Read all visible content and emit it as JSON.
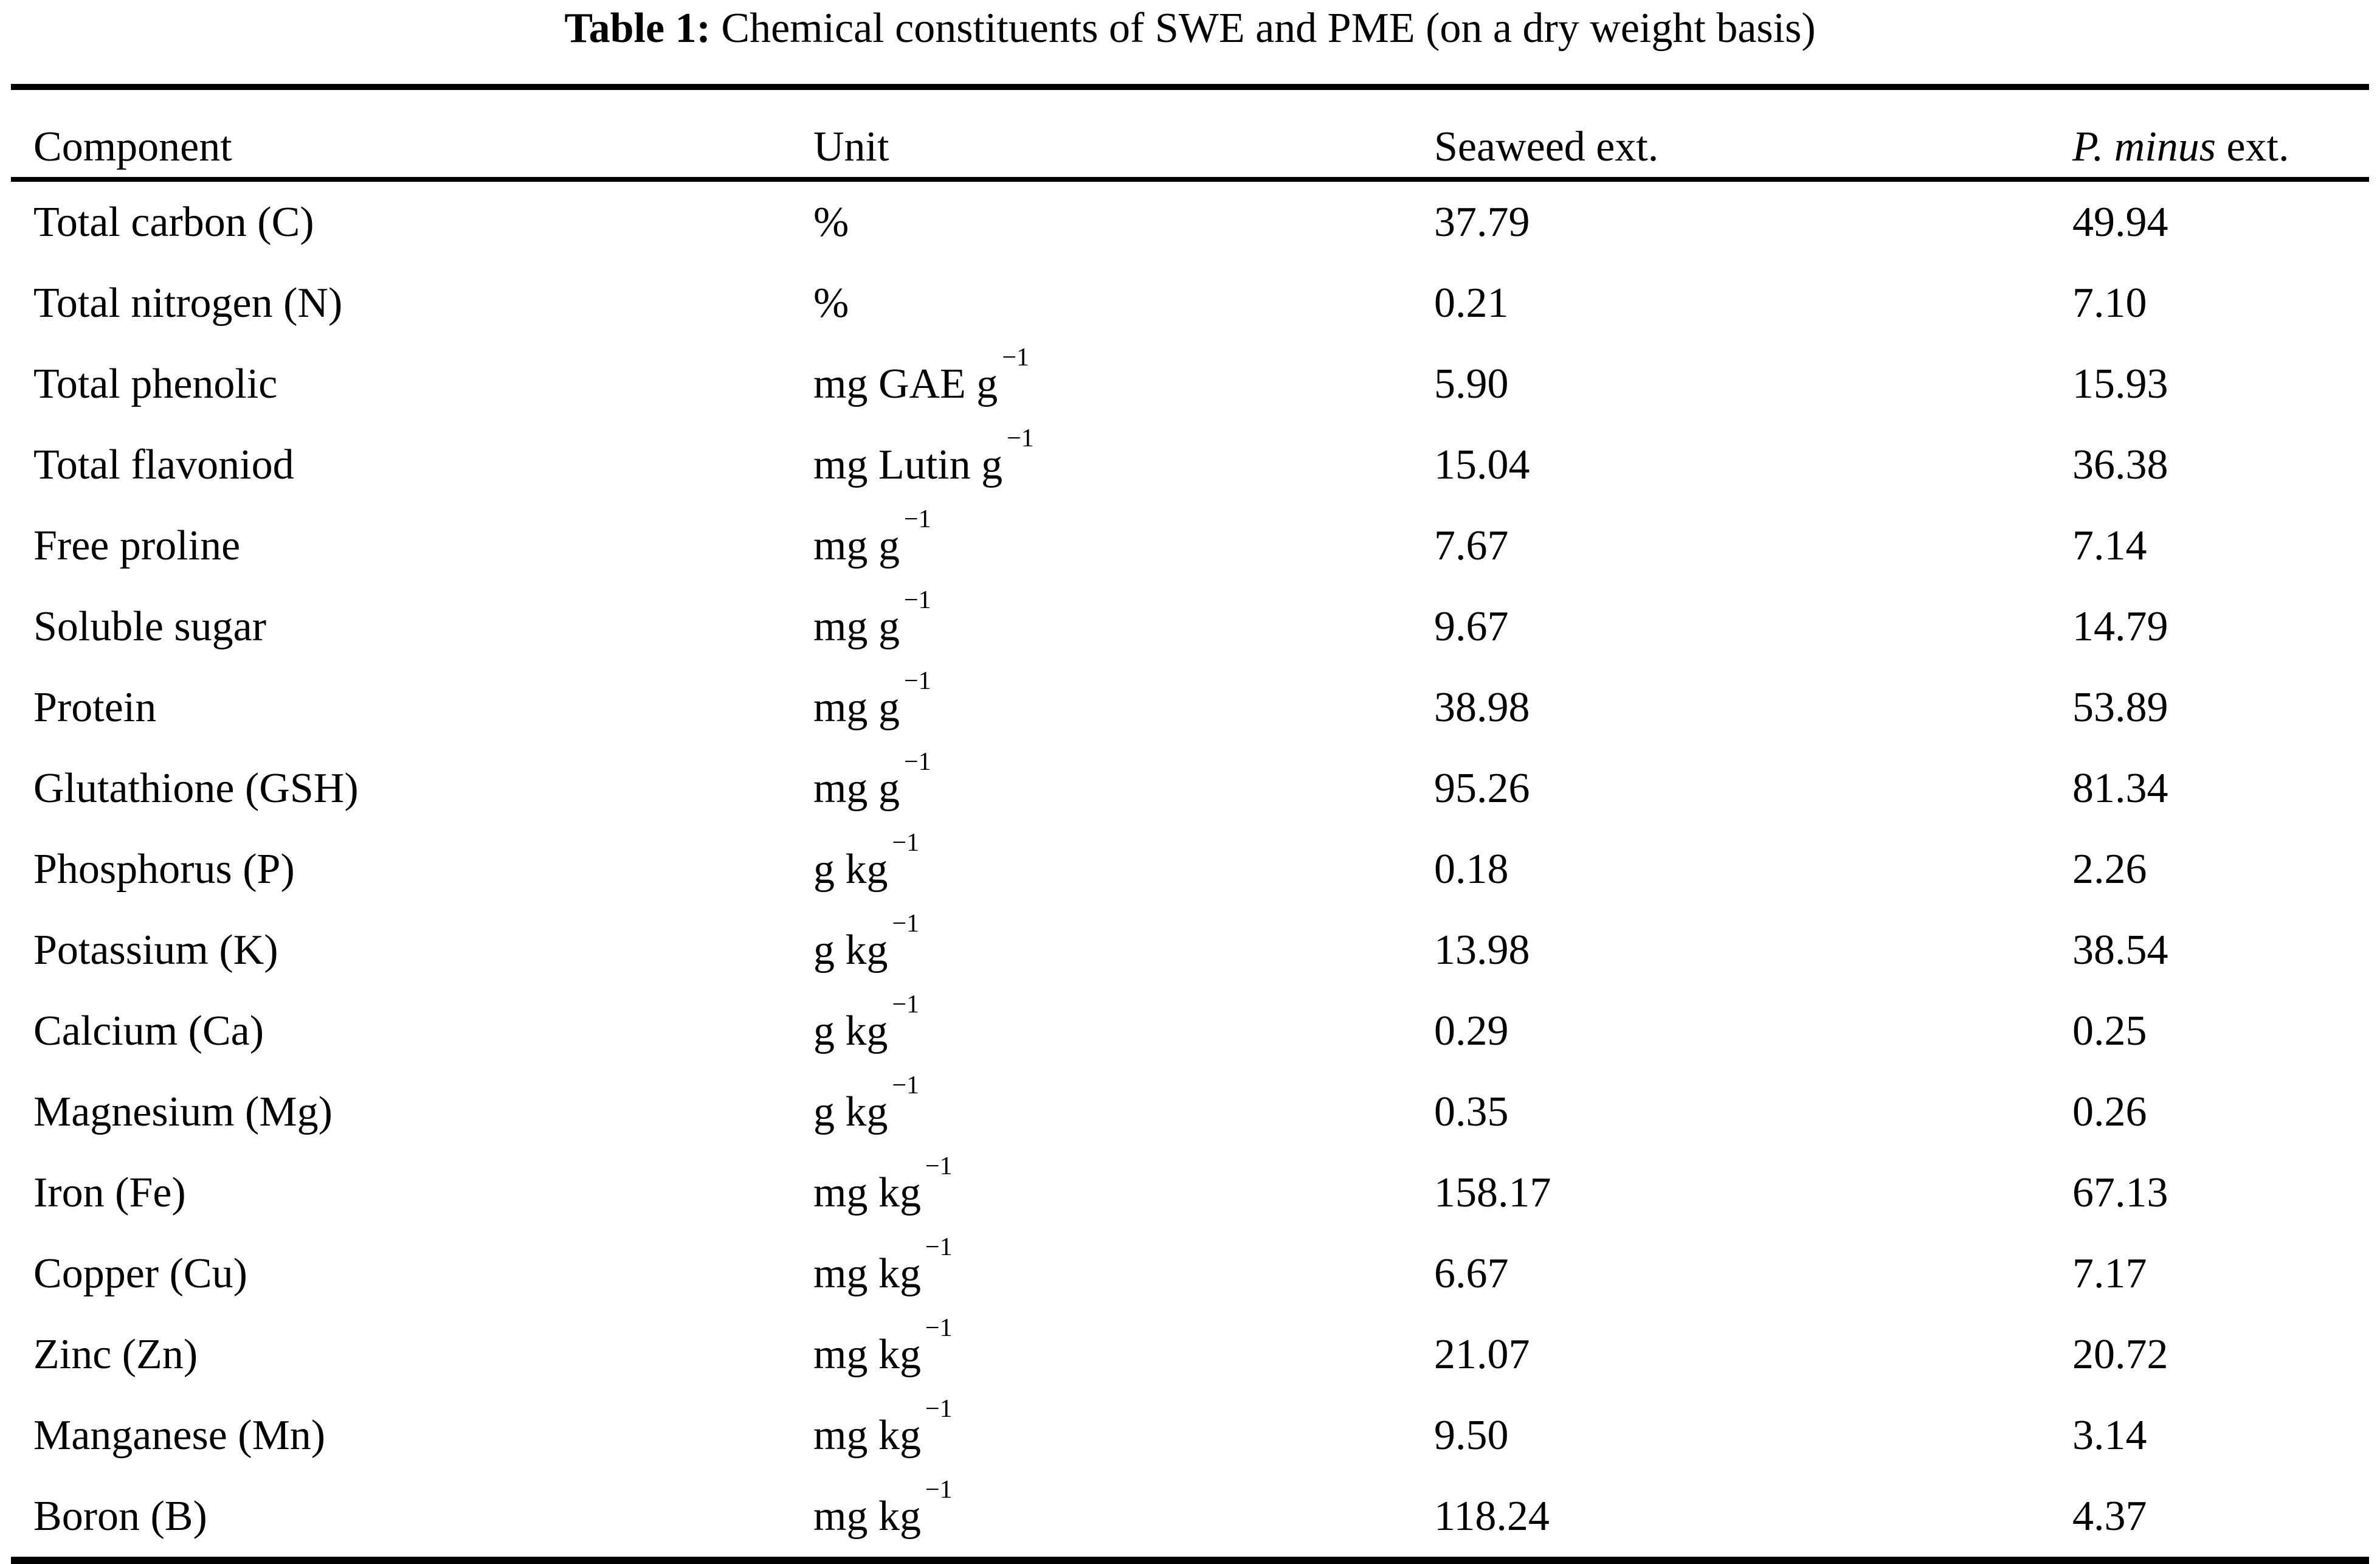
{
  "title": {
    "label": "Table 1:",
    "text": " Chemical constituents of SWE and PME (on a dry weight basis)"
  },
  "table": {
    "headers": {
      "component": "Component",
      "unit": "Unit",
      "swe": "Seaweed ext.",
      "pme_italic": "P. minus",
      "pme_rest": " ext."
    },
    "rows": [
      {
        "component": "Total carbon (C)",
        "unit_base": "%",
        "unit_sup": "",
        "swe": "37.79",
        "pme": "49.94"
      },
      {
        "component": "Total nitrogen (N)",
        "unit_base": "%",
        "unit_sup": "",
        "swe": "0.21",
        "pme": "7.10"
      },
      {
        "component": "Total phenolic",
        "unit_base": "mg GAE g",
        "unit_sup": "−1",
        "swe": "5.90",
        "pme": "15.93"
      },
      {
        "component": "Total flavoniod",
        "unit_base": "mg Lutin g",
        "unit_sup": "−1",
        "swe": "15.04",
        "pme": "36.38"
      },
      {
        "component": "Free proline",
        "unit_base": "mg g",
        "unit_sup": "−1",
        "swe": "7.67",
        "pme": "7.14"
      },
      {
        "component": "Soluble sugar",
        "unit_base": "mg g",
        "unit_sup": "−1",
        "swe": "9.67",
        "pme": "14.79"
      },
      {
        "component": "Protein",
        "unit_base": "mg g",
        "unit_sup": "−1",
        "swe": "38.98",
        "pme": "53.89"
      },
      {
        "component": "Glutathione (GSH)",
        "unit_base": "mg g",
        "unit_sup": "−1",
        "swe": "95.26",
        "pme": "81.34"
      },
      {
        "component": "Phosphorus (P)",
        "unit_base": "g kg",
        "unit_sup": "−1",
        "swe": "0.18",
        "pme": "2.26"
      },
      {
        "component": "Potassium (K)",
        "unit_base": "g kg",
        "unit_sup": "−1",
        "swe": "13.98",
        "pme": "38.54"
      },
      {
        "component": "Calcium (Ca)",
        "unit_base": "g kg",
        "unit_sup": "−1",
        "swe": "0.29",
        "pme": "0.25"
      },
      {
        "component": "Magnesium (Mg)",
        "unit_base": "g kg",
        "unit_sup": "−1",
        "swe": "0.35",
        "pme": "0.26"
      },
      {
        "component": "Iron (Fe)",
        "unit_base": "mg kg",
        "unit_sup": "−1",
        "swe": "158.17",
        "pme": "67.13"
      },
      {
        "component": "Copper (Cu)",
        "unit_base": "mg kg",
        "unit_sup": "−1",
        "swe": "6.67",
        "pme": "7.17"
      },
      {
        "component": "Zinc (Zn)",
        "unit_base": "mg kg",
        "unit_sup": "−1",
        "swe": "21.07",
        "pme": "20.72"
      },
      {
        "component": "Manganese (Mn)",
        "unit_base": "mg kg",
        "unit_sup": "−1",
        "swe": "9.50",
        "pme": "3.14"
      },
      {
        "component": "Boron (B)",
        "unit_base": "mg kg",
        "unit_sup": "−1",
        "swe": "118.24",
        "pme": "4.37"
      }
    ]
  },
  "chart_data": {
    "type": "table",
    "title": "Table 1: Chemical constituents of SWE and PME (on a dry weight basis)",
    "columns": [
      "Component",
      "Unit",
      "Seaweed ext.",
      "P. minus ext."
    ],
    "rows": [
      [
        "Total carbon (C)",
        "%",
        37.79,
        49.94
      ],
      [
        "Total nitrogen (N)",
        "%",
        0.21,
        7.1
      ],
      [
        "Total phenolic",
        "mg GAE g−1",
        5.9,
        15.93
      ],
      [
        "Total flavoniod",
        "mg Lutin g−1",
        15.04,
        36.38
      ],
      [
        "Free proline",
        "mg g−1",
        7.67,
        7.14
      ],
      [
        "Soluble sugar",
        "mg g−1",
        9.67,
        14.79
      ],
      [
        "Protein",
        "mg g−1",
        38.98,
        53.89
      ],
      [
        "Glutathione (GSH)",
        "mg g−1",
        95.26,
        81.34
      ],
      [
        "Phosphorus (P)",
        "g kg−1",
        0.18,
        2.26
      ],
      [
        "Potassium (K)",
        "g kg−1",
        13.98,
        38.54
      ],
      [
        "Calcium (Ca)",
        "g kg−1",
        0.29,
        0.25
      ],
      [
        "Magnesium (Mg)",
        "g kg−1",
        0.35,
        0.26
      ],
      [
        "Iron (Fe)",
        "mg kg−1",
        158.17,
        67.13
      ],
      [
        "Copper (Cu)",
        "mg kg−1",
        6.67,
        7.17
      ],
      [
        "Zinc (Zn)",
        "mg kg−1",
        21.07,
        20.72
      ],
      [
        "Manganese (Mn)",
        "mg kg−1",
        9.5,
        3.14
      ],
      [
        "Boron (B)",
        "mg kg−1",
        118.24,
        4.37
      ]
    ]
  },
  "colors": {
    "text": "#000000",
    "background": "#ffffff",
    "rule": "#000000"
  }
}
